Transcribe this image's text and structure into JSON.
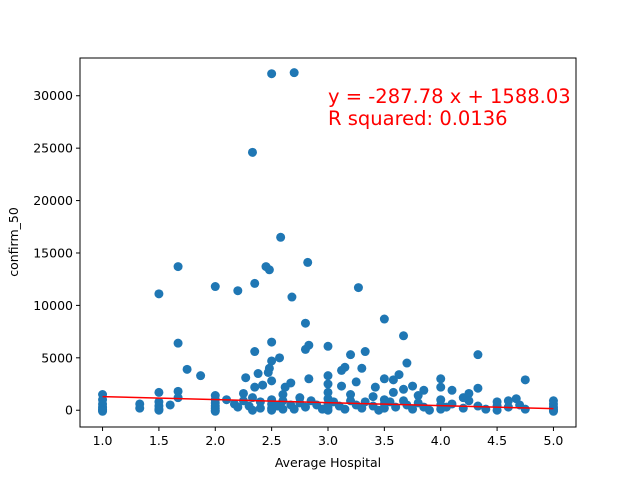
{
  "chart_data": {
    "type": "scatter",
    "title": "",
    "xlabel": "Average Hospital",
    "ylabel": "confirm_50",
    "xlim": [
      0.8,
      5.2
    ],
    "ylim": [
      -1600,
      33600
    ],
    "x_ticks": [
      "1.0",
      "1.5",
      "2.0",
      "2.5",
      "3.0",
      "3.5",
      "4.0",
      "4.5",
      "5.0"
    ],
    "x_tick_values": [
      1.0,
      1.5,
      2.0,
      2.5,
      3.0,
      3.5,
      4.0,
      4.5,
      5.0
    ],
    "y_ticks": [
      "0",
      "5000",
      "10000",
      "15000",
      "20000",
      "25000",
      "30000"
    ],
    "y_tick_values": [
      0,
      5000,
      10000,
      15000,
      20000,
      25000,
      30000
    ],
    "grid": false,
    "point_color": "#1f77b4",
    "line_color": "#ff0000",
    "annotation_color": "#ff0000",
    "annotations": {
      "equation": "y = -287.78 x + 1588.03",
      "r_squared": "R squared: 0.0136"
    },
    "regression": {
      "slope": -287.78,
      "intercept": 1588.03,
      "x_range": [
        1.0,
        5.0
      ]
    },
    "points": [
      [
        2.5,
        32100
      ],
      [
        2.7,
        32200
      ],
      [
        2.33,
        24600
      ],
      [
        2.58,
        16500
      ],
      [
        2.82,
        14100
      ],
      [
        1.67,
        13700
      ],
      [
        2.45,
        13700
      ],
      [
        2.48,
        13400
      ],
      [
        2.35,
        12100
      ],
      [
        2.0,
        11800
      ],
      [
        2.2,
        11400
      ],
      [
        1.5,
        11100
      ],
      [
        2.68,
        10800
      ],
      [
        3.27,
        11700
      ],
      [
        3.5,
        8700
      ],
      [
        2.8,
        8300
      ],
      [
        3.67,
        7100
      ],
      [
        1.67,
        6400
      ],
      [
        2.5,
        6500
      ],
      [
        2.83,
        6200
      ],
      [
        3.0,
        6100
      ],
      [
        2.8,
        5800
      ],
      [
        3.33,
        5600
      ],
      [
        3.2,
        5300
      ],
      [
        4.33,
        5300
      ],
      [
        2.35,
        5600
      ],
      [
        2.5,
        4700
      ],
      [
        2.57,
        5000
      ],
      [
        2.48,
        4000
      ],
      [
        3.7,
        4500
      ],
      [
        3.15,
        4100
      ],
      [
        3.3,
        4000
      ],
      [
        1.75,
        3900
      ],
      [
        1.87,
        3300
      ],
      [
        2.27,
        3100
      ],
      [
        2.38,
        3500
      ],
      [
        2.47,
        3600
      ],
      [
        2.83,
        3000
      ],
      [
        3.0,
        3300
      ],
      [
        3.12,
        3800
      ],
      [
        3.5,
        3000
      ],
      [
        3.58,
        2900
      ],
      [
        3.63,
        3400
      ],
      [
        4.0,
        3000
      ],
      [
        4.75,
        2900
      ],
      [
        2.35,
        2200
      ],
      [
        2.42,
        2400
      ],
      [
        2.5,
        2800
      ],
      [
        2.62,
        2200
      ],
      [
        2.67,
        2600
      ],
      [
        3.0,
        2500
      ],
      [
        3.12,
        2300
      ],
      [
        3.25,
        2700
      ],
      [
        3.42,
        2200
      ],
      [
        3.67,
        2000
      ],
      [
        3.75,
        2300
      ],
      [
        3.85,
        1900
      ],
      [
        4.0,
        2200
      ],
      [
        4.33,
        2100
      ],
      [
        4.1,
        1900
      ],
      [
        1.5,
        1700
      ],
      [
        1.67,
        1800
      ],
      [
        2.0,
        1400
      ],
      [
        2.25,
        1600
      ],
      [
        2.33,
        1200
      ],
      [
        2.6,
        1500
      ],
      [
        2.75,
        1200
      ],
      [
        3.0,
        1700
      ],
      [
        3.2,
        1500
      ],
      [
        3.4,
        1300
      ],
      [
        3.58,
        1700
      ],
      [
        3.8,
        1400
      ],
      [
        4.2,
        1200
      ],
      [
        4.25,
        1600
      ],
      [
        4.6,
        900
      ],
      [
        1.0,
        1500
      ],
      [
        1.0,
        1000
      ],
      [
        1.0,
        600
      ],
      [
        1.0,
        300
      ],
      [
        1.0,
        100
      ],
      [
        1.0,
        0
      ],
      [
        1.0,
        -100
      ],
      [
        1.33,
        600
      ],
      [
        1.33,
        200
      ],
      [
        1.5,
        800
      ],
      [
        1.5,
        400
      ],
      [
        1.5,
        100
      ],
      [
        1.5,
        0
      ],
      [
        1.6,
        500
      ],
      [
        1.67,
        1200
      ],
      [
        2.0,
        1000
      ],
      [
        2.0,
        700
      ],
      [
        2.0,
        400
      ],
      [
        2.0,
        200
      ],
      [
        2.0,
        0
      ],
      [
        2.0,
        -100
      ],
      [
        2.1,
        1000
      ],
      [
        2.17,
        600
      ],
      [
        2.2,
        300
      ],
      [
        2.25,
        900
      ],
      [
        2.3,
        400
      ],
      [
        2.33,
        0
      ],
      [
        2.4,
        800
      ],
      [
        2.4,
        200
      ],
      [
        2.5,
        1000
      ],
      [
        2.5,
        600
      ],
      [
        2.5,
        200
      ],
      [
        2.5,
        0
      ],
      [
        2.55,
        400
      ],
      [
        2.6,
        900
      ],
      [
        2.6,
        100
      ],
      [
        2.67,
        500
      ],
      [
        2.7,
        100
      ],
      [
        2.75,
        700
      ],
      [
        2.8,
        300
      ],
      [
        2.85,
        900
      ],
      [
        2.9,
        500
      ],
      [
        2.95,
        100
      ],
      [
        3.0,
        1100
      ],
      [
        3.0,
        600
      ],
      [
        3.0,
        300
      ],
      [
        3.0,
        0
      ],
      [
        3.05,
        800
      ],
      [
        3.1,
        400
      ],
      [
        3.15,
        100
      ],
      [
        3.2,
        900
      ],
      [
        3.25,
        500
      ],
      [
        3.3,
        200
      ],
      [
        3.33,
        800
      ],
      [
        3.4,
        400
      ],
      [
        3.45,
        0
      ],
      [
        3.5,
        1000
      ],
      [
        3.5,
        600
      ],
      [
        3.5,
        200
      ],
      [
        3.55,
        800
      ],
      [
        3.6,
        300
      ],
      [
        3.67,
        900
      ],
      [
        3.7,
        500
      ],
      [
        3.75,
        100
      ],
      [
        3.8,
        700
      ],
      [
        3.85,
        300
      ],
      [
        3.9,
        0
      ],
      [
        4.0,
        1000
      ],
      [
        4.0,
        500
      ],
      [
        4.0,
        100
      ],
      [
        4.05,
        300
      ],
      [
        4.1,
        600
      ],
      [
        4.2,
        200
      ],
      [
        4.25,
        900
      ],
      [
        4.33,
        400
      ],
      [
        4.4,
        100
      ],
      [
        4.5,
        800
      ],
      [
        4.5,
        400
      ],
      [
        4.5,
        0
      ],
      [
        4.6,
        300
      ],
      [
        4.67,
        1100
      ],
      [
        4.7,
        500
      ],
      [
        4.75,
        100
      ],
      [
        5.0,
        900
      ],
      [
        5.0,
        600
      ],
      [
        5.0,
        300
      ],
      [
        5.0,
        100
      ],
      [
        5.0,
        0
      ],
      [
        5.0,
        -100
      ]
    ]
  }
}
